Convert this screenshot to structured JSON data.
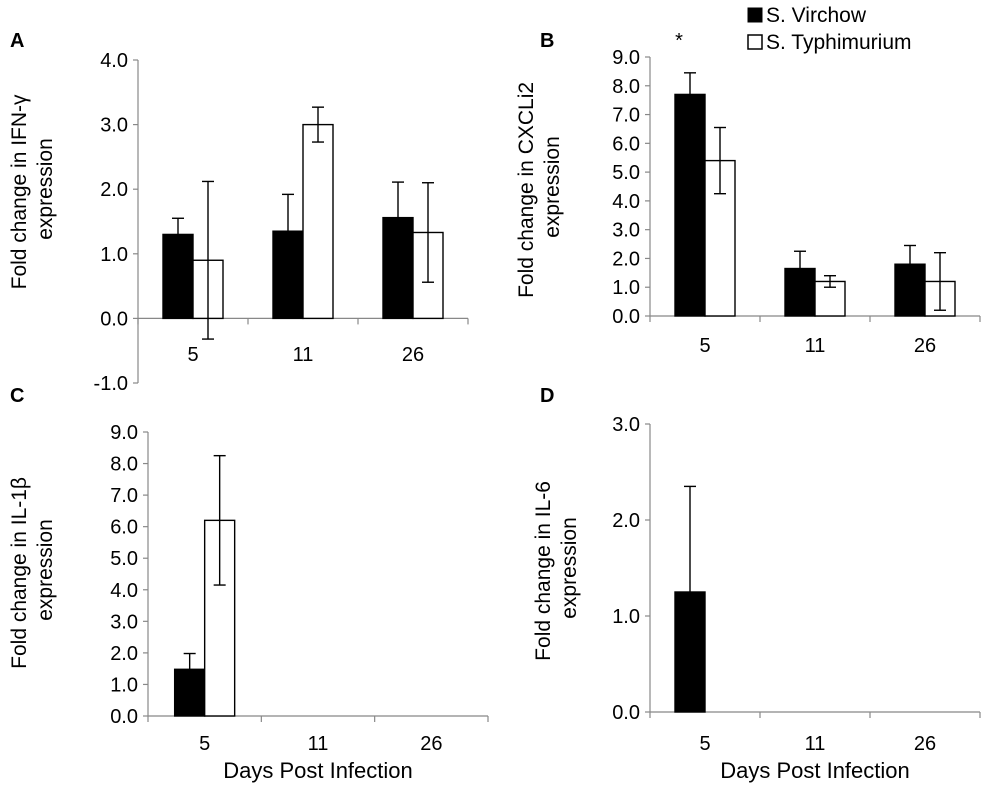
{
  "legend": {
    "series": [
      {
        "name": "S. Virchow",
        "fill": "#000000"
      },
      {
        "name": "S. Typhimurium",
        "fill": "#ffffff"
      }
    ]
  },
  "chart_data": [
    {
      "type": "bar",
      "panel": "A",
      "ylabel_lines": [
        "Fold change in IFN-γ",
        "expression"
      ],
      "xlabel": "",
      "categories": [
        "5",
        "11",
        "26"
      ],
      "ylim": [
        -1.0,
        4.0
      ],
      "yticks": [
        -1.0,
        0.0,
        1.0,
        2.0,
        3.0,
        4.0
      ],
      "ytick_labels": [
        "-1.0",
        "0.0",
        "1.0",
        "2.0",
        "3.0",
        "4.0"
      ],
      "series": [
        {
          "name": "S. Virchow",
          "values": [
            1.3,
            1.35,
            1.56
          ],
          "error": [
            0.25,
            0.57,
            0.55
          ]
        },
        {
          "name": "S. Typhimurium",
          "values": [
            0.9,
            3.0,
            1.33
          ],
          "error": [
            1.22,
            0.27,
            0.77
          ]
        }
      ],
      "annotations": []
    },
    {
      "type": "bar",
      "panel": "B",
      "ylabel_lines": [
        "Fold change in CXCLi2",
        "expression"
      ],
      "xlabel": "",
      "categories": [
        "5",
        "11",
        "26"
      ],
      "ylim": [
        0,
        9.0
      ],
      "yticks": [
        0,
        1,
        2,
        3,
        4,
        5,
        6,
        7,
        8,
        9
      ],
      "ytick_labels": [
        "0.0",
        "1.0",
        "2.0",
        "3.0",
        "4.0",
        "5.0",
        "6.0",
        "7.0",
        "8.0",
        "9.0"
      ],
      "series": [
        {
          "name": "S. Virchow",
          "values": [
            7.7,
            1.65,
            1.8
          ],
          "error": [
            0.75,
            0.6,
            0.65
          ]
        },
        {
          "name": "S. Typhimurium",
          "values": [
            5.4,
            1.2,
            1.2
          ],
          "error": [
            1.15,
            0.2,
            1.0
          ]
        }
      ],
      "annotations": [
        {
          "text": "*",
          "category": "5"
        }
      ]
    },
    {
      "type": "bar",
      "panel": "C",
      "ylabel_lines": [
        "Fold change in IL-1β",
        "expression"
      ],
      "xlabel": "Days Post Infection",
      "categories": [
        "5",
        "11",
        "26"
      ],
      "ylim": [
        0,
        9.0
      ],
      "yticks": [
        0,
        1,
        2,
        3,
        4,
        5,
        6,
        7,
        8,
        9
      ],
      "ytick_labels": [
        "0.0",
        "1.0",
        "2.0",
        "3.0",
        "4.0",
        "5.0",
        "6.0",
        "7.0",
        "8.0",
        "9.0"
      ],
      "series": [
        {
          "name": "S. Virchow",
          "values": [
            1.48,
            null,
            null
          ],
          "error": [
            0.5,
            null,
            null
          ]
        },
        {
          "name": "S. Typhimurium",
          "values": [
            6.2,
            null,
            null
          ],
          "error": [
            2.05,
            null,
            null
          ]
        }
      ],
      "annotations": []
    },
    {
      "type": "bar",
      "panel": "D",
      "ylabel_lines": [
        "Fold change in IL-6",
        "expression"
      ],
      "xlabel": "Days Post Infection",
      "categories": [
        "5",
        "11",
        "26"
      ],
      "ylim": [
        0,
        3.0
      ],
      "yticks": [
        0,
        1,
        2,
        3
      ],
      "ytick_labels": [
        "0.0",
        "1.0",
        "2.0",
        "3.0"
      ],
      "series": [
        {
          "name": "S. Virchow",
          "values": [
            1.25,
            null,
            null
          ],
          "error": [
            1.1,
            null,
            null
          ]
        },
        {
          "name": "S. Typhimurium",
          "values": [
            null,
            null,
            null
          ],
          "error": [
            null,
            null,
            null
          ]
        }
      ],
      "annotations": []
    }
  ]
}
